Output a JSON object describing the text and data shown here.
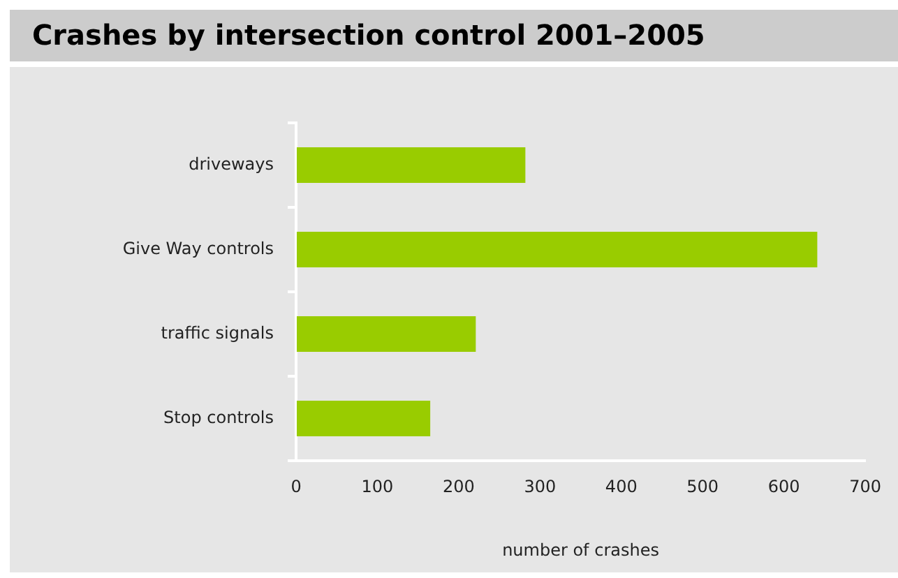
{
  "chart_data": {
    "type": "bar",
    "orientation": "horizontal",
    "title": "Crashes by intersection control 2001–2005",
    "xlabel": "number of crashes",
    "categories": [
      "driveways",
      "Give Way controls",
      "traffic signals",
      "Stop controls"
    ],
    "values": [
      282,
      641,
      221,
      165
    ],
    "color": "#99cc00",
    "xlim": [
      0,
      700
    ],
    "xticks": [
      0,
      100,
      200,
      300,
      400,
      500,
      600,
      700
    ],
    "grid": false,
    "legend": false
  }
}
